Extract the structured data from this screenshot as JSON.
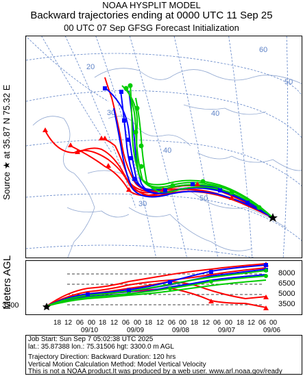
{
  "titles": {
    "model": "NOAA HYSPLIT MODEL",
    "main": "Backward trajectories ending at 0000 UTC 11 Sep 25",
    "sub": "00 UTC 07 Sep    GFSG  Forecast Initialization"
  },
  "source_label": "Source ★ at   35.87 N   75.32 E",
  "meters_label": "Meters AGL",
  "map": {
    "grid_labels": [
      "20",
      "30",
      "40",
      "50",
      "30",
      "40",
      "50",
      "60"
    ],
    "colors": {
      "red": "#ff0000",
      "blue": "#0000ff",
      "green": "#00cc00",
      "grid": "#5f83c7",
      "coast": "#8fa6d0"
    }
  },
  "height_axis": {
    "start_label": "3300",
    "right_labels": [
      "8000",
      "6500",
      "5000",
      "3500"
    ]
  },
  "time_axis": {
    "hour_ticks": [
      "18",
      "12",
      "06",
      "00",
      "18",
      "12",
      "06",
      "00",
      "18",
      "12",
      "06",
      "00",
      "18",
      "12",
      "06",
      "00",
      "18",
      "12",
      "06",
      "00"
    ],
    "date_labels": [
      "09/10",
      "09/09",
      "09/08",
      "09/07",
      "09/06"
    ]
  },
  "info": {
    "line1": "Job Start: Sun Sep  7 05:02:38 UTC 2025",
    "line2": "lat.: 35.87388   lon.: 75.31506   hgt: 3300.0 m AGL",
    "line3": "Trajectory Direction: Backward       Duration: 120 hrs",
    "line4": "Vertical Motion Calculation Method: Model Vertical Velocity",
    "line5": "This is not a NOAA product.It was produced by a web user. www.arl.noaa.gov/ready"
  }
}
